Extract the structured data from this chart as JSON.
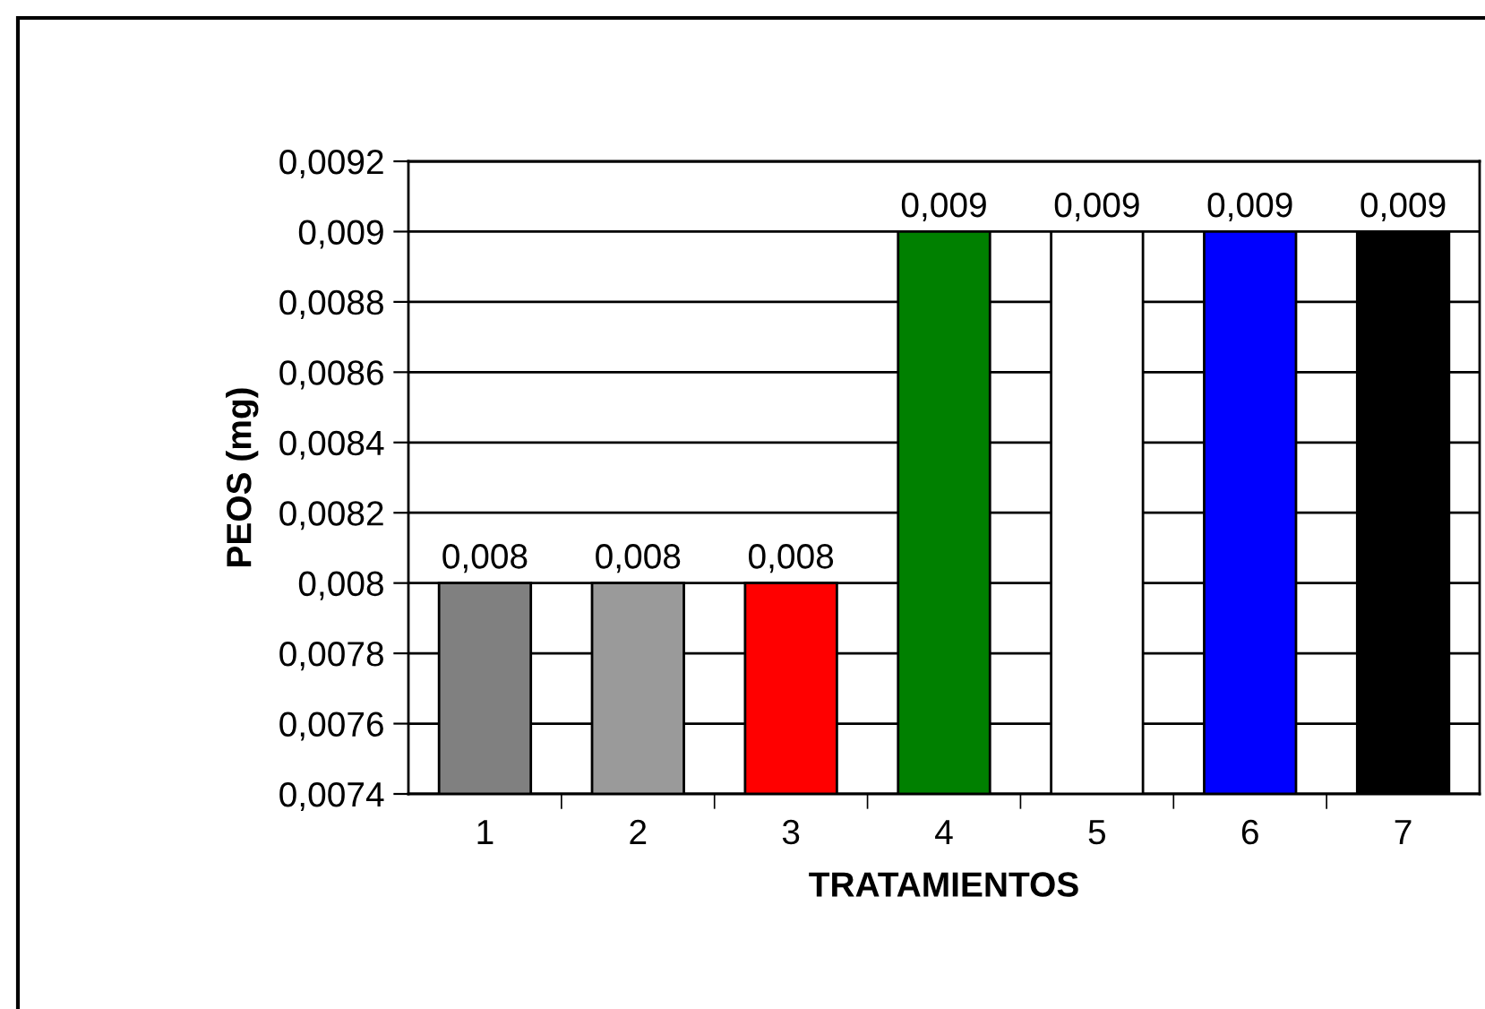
{
  "chart_data": {
    "type": "bar",
    "xlabel": "TRATAMIENTOS",
    "ylabel": "PEOS (mg)",
    "categories": [
      "1",
      "2",
      "3",
      "4",
      "5",
      "6",
      "7"
    ],
    "values": [
      0.008,
      0.008,
      0.008,
      0.009,
      0.009,
      0.009,
      0.009
    ],
    "colors": [
      "#808080",
      "#9a9a9a",
      "#ff0000",
      "#008000",
      "#ffffff",
      "#0000ff",
      "#000000"
    ],
    "value_labels": [
      "0,008",
      "0,008",
      "0,008",
      "0,009",
      "0,009",
      "0,009",
      "0,009"
    ],
    "ylim": [
      0.0074,
      0.0092
    ],
    "yticks": [
      {
        "value": 0.0074,
        "label": "0,0074"
      },
      {
        "value": 0.0076,
        "label": "0,0076"
      },
      {
        "value": 0.0078,
        "label": "0,0078"
      },
      {
        "value": 0.008,
        "label": "0,008"
      },
      {
        "value": 0.0082,
        "label": "0,0082"
      },
      {
        "value": 0.0084,
        "label": "0,0084"
      },
      {
        "value": 0.0086,
        "label": "0,0086"
      },
      {
        "value": 0.0088,
        "label": "0,0088"
      },
      {
        "value": 0.009,
        "label": "0,009"
      },
      {
        "value": 0.0092,
        "label": "0,0092"
      }
    ],
    "grid": "y",
    "legend": false
  }
}
